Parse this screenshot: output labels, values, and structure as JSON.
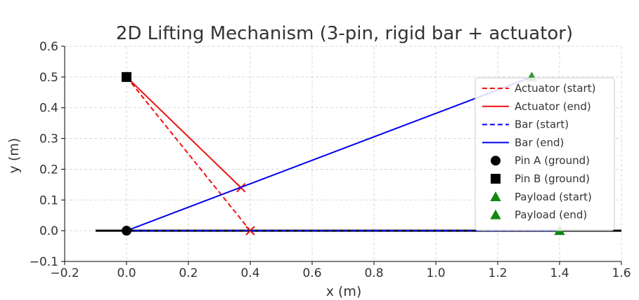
{
  "chart_data": {
    "type": "line",
    "title": "2D Lifting Mechanism (3-pin, rigid bar + actuator)",
    "xlabel": "x (m)",
    "ylabel": "y (m)",
    "xlim": [
      -0.2,
      1.6
    ],
    "ylim": [
      -0.1,
      0.6
    ],
    "x_ticks": [
      -0.2,
      0.0,
      0.2,
      0.4,
      0.6,
      0.8,
      1.0,
      1.2,
      1.4,
      1.6
    ],
    "y_ticks": [
      -0.1,
      0.0,
      0.1,
      0.2,
      0.3,
      0.4,
      0.5,
      0.6
    ],
    "grid": true,
    "legend_position": "upper-right",
    "ground_line": {
      "x": [
        -0.1,
        1.6
      ],
      "y": [
        0.0,
        0.0
      ],
      "color": "#000000"
    },
    "series": [
      {
        "name": "Actuator (start)",
        "kind": "line",
        "style": "dashed",
        "color": "#ee1111",
        "x": [
          0.0,
          0.4
        ],
        "y": [
          0.5,
          0.0
        ],
        "end_marker": "x"
      },
      {
        "name": "Actuator (end)",
        "kind": "line",
        "style": "solid",
        "color": "#ee1111",
        "x": [
          0.0,
          0.37
        ],
        "y": [
          0.5,
          0.14
        ],
        "end_marker": "x"
      },
      {
        "name": "Bar (start)",
        "kind": "line",
        "style": "dashed",
        "color": "#0000ee",
        "x": [
          0.0,
          1.4
        ],
        "y": [
          0.0,
          0.0
        ]
      },
      {
        "name": "Bar (end)",
        "kind": "line",
        "style": "solid",
        "color": "#0000ee",
        "x": [
          0.0,
          1.31
        ],
        "y": [
          0.0,
          0.5
        ]
      },
      {
        "name": "Pin A (ground)",
        "kind": "marker",
        "marker": "circle",
        "color": "#000000",
        "x": [
          0.0
        ],
        "y": [
          0.0
        ]
      },
      {
        "name": "Pin B (ground)",
        "kind": "marker",
        "marker": "square",
        "color": "#000000",
        "x": [
          0.0
        ],
        "y": [
          0.5
        ]
      },
      {
        "name": "Payload (start)",
        "kind": "marker",
        "marker": "triangle",
        "color": "#118811",
        "x": [
          1.4
        ],
        "y": [
          0.0
        ]
      },
      {
        "name": "Payload (end)",
        "kind": "marker",
        "marker": "triangle",
        "color": "#118811",
        "x": [
          1.31
        ],
        "y": [
          0.5
        ]
      }
    ]
  }
}
